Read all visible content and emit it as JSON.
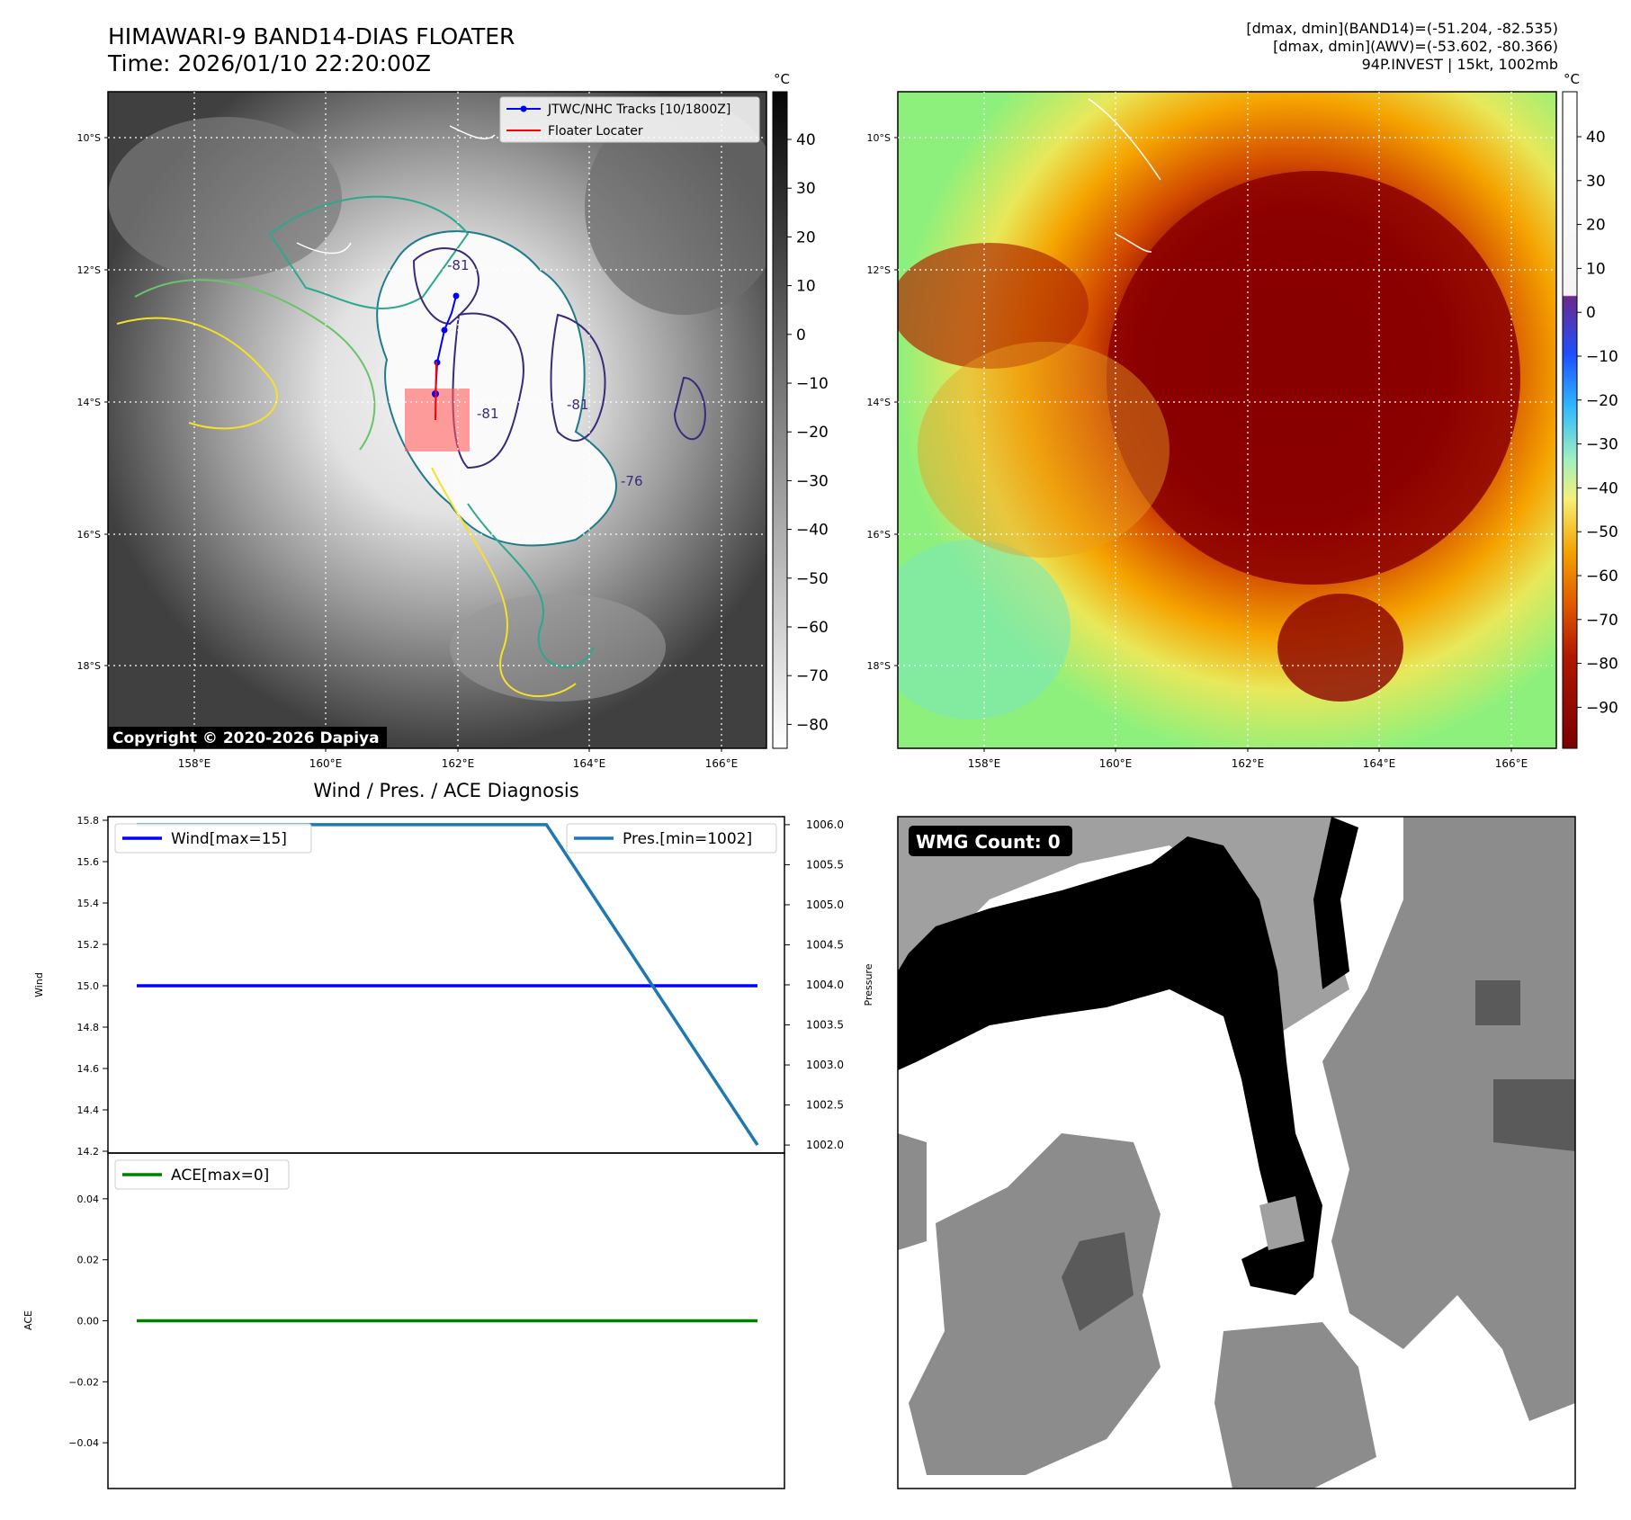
{
  "header": {
    "title_line1": "HIMAWARI-9 BAND14-DIAS FLOATER",
    "title_line2": "Time: 2026/01/10 22:20:00Z",
    "info_line1": "[dmax, dmin](BAND14)=(-51.204, -82.535)",
    "info_line2": "[dmax, dmin](AWV)=(-53.602, -80.366)",
    "info_line3": "94P.INVEST | 15kt, 1002mb"
  },
  "map_axes": {
    "lat_ticks": [
      "10°S",
      "12°S",
      "14°S",
      "16°S",
      "18°S"
    ],
    "lon_ticks": [
      "158°E",
      "160°E",
      "162°E",
      "164°E",
      "166°E"
    ]
  },
  "left_map": {
    "legend": {
      "tracks": "JTWC/NHC Tracks [10/1800Z]",
      "locater": "Floater Locater"
    },
    "copyright": "Copyright © 2020-2026 Dapiya",
    "contour_labels": [
      "-81",
      "-81",
      "-76",
      "-81"
    ],
    "colorbar": {
      "unit": "°C",
      "ticks": [
        "40",
        "30",
        "20",
        "10",
        "0",
        "−10",
        "−20",
        "−30",
        "−40",
        "−50",
        "−60",
        "−70",
        "−80"
      ]
    }
  },
  "right_map": {
    "colorbar": {
      "unit": "°C",
      "ticks": [
        "40",
        "30",
        "20",
        "10",
        "0",
        "−10",
        "−20",
        "−30",
        "−40",
        "−50",
        "−60",
        "−70",
        "−80",
        "−90"
      ]
    }
  },
  "chart_data": {
    "type": "line",
    "title": "Wind / Pres. / ACE Diagnosis",
    "x": [
      0,
      1
    ],
    "upper": {
      "ylabel_left": "Wind",
      "ylabel_right": "Pressure",
      "wind_ylim": [
        14.2,
        15.8
      ],
      "wind_ticks": [
        "14.2",
        "14.4",
        "14.6",
        "14.8",
        "15.0",
        "15.2",
        "15.4",
        "15.6",
        "15.8"
      ],
      "pres_ylim": [
        1001.9,
        1006.1
      ],
      "pres_ticks": [
        "1002.0",
        "1002.5",
        "1003.0",
        "1003.5",
        "1004.0",
        "1004.5",
        "1005.0",
        "1005.5",
        "1006.0"
      ],
      "series": [
        {
          "name": "Wind[max=15]",
          "color": "#0000ff",
          "x": [
            0,
            1
          ],
          "values": [
            15,
            15
          ]
        },
        {
          "name": "Pres.[min=1002]",
          "color": "#1f77b4",
          "x": [
            0,
            0.66,
            1
          ],
          "values": [
            1006,
            1006,
            1002
          ]
        }
      ]
    },
    "lower": {
      "ylabel": "ACE",
      "ylim": [
        -0.055,
        0.055
      ],
      "ticks": [
        "0.04",
        "0.02",
        "0.00",
        "−0.02",
        "−0.04"
      ],
      "series": [
        {
          "name": "ACE[max=0]",
          "color": "#008000",
          "x": [
            0,
            1
          ],
          "values": [
            0,
            0
          ]
        }
      ]
    }
  },
  "wmg_panel": {
    "label": "WMG Count: 0"
  }
}
